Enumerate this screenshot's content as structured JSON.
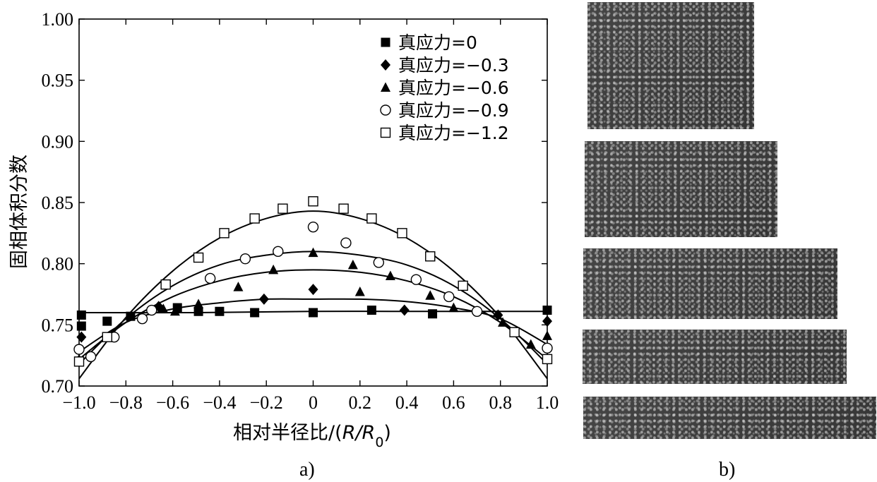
{
  "chart_data": {
    "type": "scatter",
    "xlabel": "相对半径比/(R/R0)",
    "ylabel": "固相体积分数",
    "xlim": [
      -1.0,
      1.0
    ],
    "ylim": [
      0.7,
      1.0
    ],
    "xticks": [
      "−1.0",
      "−0.8",
      "−0.6",
      "−0.4",
      "−0.2",
      "0",
      "0.2",
      "0.4",
      "0.6",
      "0.8",
      "1.0"
    ],
    "yticks": [
      "0.70",
      "0.75",
      "0.80",
      "0.85",
      "0.90",
      "0.95",
      "1.00"
    ],
    "legend_position": "top-right",
    "series": [
      {
        "name": "真应力=0",
        "marker": "filled-square",
        "x": [
          -0.99,
          -0.99,
          -0.88,
          -0.78,
          -0.58,
          -0.49,
          -0.4,
          -0.25,
          0.0,
          0.25,
          0.51,
          1.0
        ],
        "y": [
          0.758,
          0.749,
          0.753,
          0.757,
          0.764,
          0.761,
          0.761,
          0.76,
          0.76,
          0.762,
          0.759,
          0.762
        ],
        "fit": [
          [
            -1.0,
            0.76
          ],
          [
            -0.5,
            0.76
          ],
          [
            0.0,
            0.761
          ],
          [
            0.5,
            0.761
          ],
          [
            1.0,
            0.761
          ]
        ]
      },
      {
        "name": "真应力=−0.3",
        "marker": "filled-diamond",
        "x": [
          -0.99,
          -0.66,
          -0.21,
          0.0,
          0.39,
          0.79,
          1.0
        ],
        "y": [
          0.74,
          0.765,
          0.771,
          0.779,
          0.762,
          0.758,
          0.753
        ],
        "fit": [
          [
            -1.0,
            0.728
          ],
          [
            -0.8,
            0.752
          ],
          [
            -0.6,
            0.763
          ],
          [
            -0.4,
            0.768
          ],
          [
            -0.2,
            0.771
          ],
          [
            0.0,
            0.771
          ],
          [
            0.2,
            0.771
          ],
          [
            0.4,
            0.769
          ],
          [
            0.6,
            0.764
          ],
          [
            0.8,
            0.755
          ],
          [
            1.0,
            0.734
          ]
        ]
      },
      {
        "name": "真应力=−0.6",
        "marker": "filled-triangle",
        "x": [
          -1.0,
          -0.64,
          -0.59,
          -0.49,
          -0.32,
          -0.17,
          0.0,
          0.17,
          0.2,
          0.33,
          0.5,
          0.6,
          0.81,
          0.93,
          1.0
        ],
        "y": [
          0.722,
          0.763,
          0.761,
          0.767,
          0.781,
          0.795,
          0.809,
          0.799,
          0.777,
          0.79,
          0.774,
          0.764,
          0.752,
          0.734,
          0.741
        ],
        "fit": [
          [
            -1.0,
            0.722
          ],
          [
            -0.8,
            0.752
          ],
          [
            -0.6,
            0.773
          ],
          [
            -0.4,
            0.786
          ],
          [
            -0.2,
            0.793
          ],
          [
            0.0,
            0.795
          ],
          [
            0.2,
            0.793
          ],
          [
            0.4,
            0.786
          ],
          [
            0.6,
            0.773
          ],
          [
            0.8,
            0.752
          ],
          [
            1.0,
            0.722
          ]
        ]
      },
      {
        "name": "真应力=−0.9",
        "marker": "open-circle",
        "x": [
          -1.0,
          -0.95,
          -0.85,
          -0.73,
          -0.69,
          -0.44,
          -0.29,
          -0.15,
          0.0,
          0.14,
          0.28,
          0.44,
          0.58,
          0.7,
          1.0
        ],
        "y": [
          0.73,
          0.724,
          0.74,
          0.755,
          0.762,
          0.788,
          0.804,
          0.81,
          0.83,
          0.817,
          0.801,
          0.787,
          0.773,
          0.761,
          0.731
        ],
        "fit": [
          [
            -1.0,
            0.718
          ],
          [
            -0.8,
            0.755
          ],
          [
            -0.6,
            0.782
          ],
          [
            -0.4,
            0.799
          ],
          [
            -0.2,
            0.807
          ],
          [
            0.0,
            0.81
          ],
          [
            0.2,
            0.807
          ],
          [
            0.4,
            0.799
          ],
          [
            0.6,
            0.782
          ],
          [
            0.8,
            0.755
          ],
          [
            1.0,
            0.718
          ]
        ]
      },
      {
        "name": "真应力=−1.2",
        "marker": "open-square",
        "x": [
          -1.0,
          -0.88,
          -0.63,
          -0.49,
          -0.38,
          -0.25,
          -0.13,
          0.0,
          0.13,
          0.25,
          0.38,
          0.5,
          0.64,
          0.86,
          1.0
        ],
        "y": [
          0.72,
          0.74,
          0.783,
          0.805,
          0.825,
          0.837,
          0.845,
          0.851,
          0.845,
          0.837,
          0.825,
          0.806,
          0.782,
          0.744,
          0.722
        ],
        "fit": [
          [
            -1.0,
            0.706
          ],
          [
            -0.8,
            0.756
          ],
          [
            -0.6,
            0.794
          ],
          [
            -0.4,
            0.821
          ],
          [
            -0.2,
            0.837
          ],
          [
            0.0,
            0.843
          ],
          [
            0.2,
            0.837
          ],
          [
            0.4,
            0.821
          ],
          [
            0.6,
            0.794
          ],
          [
            0.8,
            0.756
          ],
          [
            1.0,
            0.706
          ]
        ]
      }
    ]
  },
  "captions": {
    "a": "a)",
    "b": "b)"
  },
  "panel_b": {
    "samples": 5
  }
}
